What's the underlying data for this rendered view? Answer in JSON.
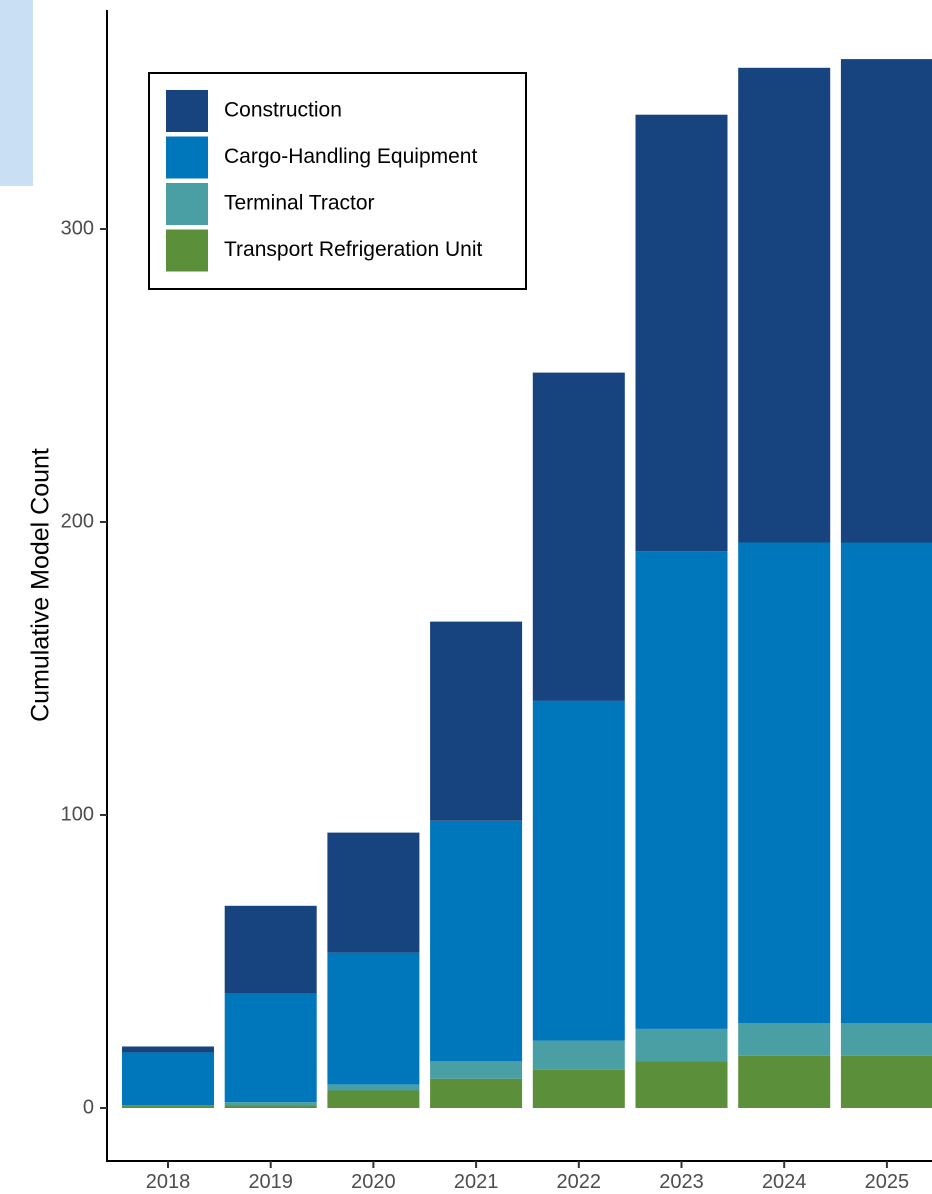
{
  "chart_data": {
    "type": "bar",
    "stacked": true,
    "title": "",
    "xlabel": "",
    "ylabel": "Cumulative Model Count",
    "categories": [
      "2018",
      "2019",
      "2020",
      "2021",
      "2022",
      "2023",
      "2024",
      "2025"
    ],
    "series": [
      {
        "name": "Transport Refrigeration Unit",
        "color": "#5b8f3a",
        "values": [
          1,
          1,
          6,
          10,
          13,
          16,
          18,
          18
        ]
      },
      {
        "name": "Terminal Tractor",
        "color": "#4a9fa5",
        "values": [
          0,
          1,
          2,
          6,
          10,
          11,
          11,
          11
        ]
      },
      {
        "name": "Cargo-Handling Equipment",
        "color": "#0076bb",
        "values": [
          18,
          37,
          45,
          82,
          116,
          163,
          164,
          164
        ]
      },
      {
        "name": "Construction",
        "color": "#17447e",
        "values": [
          2,
          30,
          41,
          68,
          112,
          149,
          162,
          165
        ]
      }
    ],
    "legend_order": [
      "Construction",
      "Cargo-Handling Equipment",
      "Terminal Tractor",
      "Transport Refrigeration Unit"
    ],
    "yticks": [
      0,
      100,
      200,
      300
    ],
    "ylim": [
      -10,
      375
    ],
    "legend_position": "top-left",
    "grid": false
  }
}
